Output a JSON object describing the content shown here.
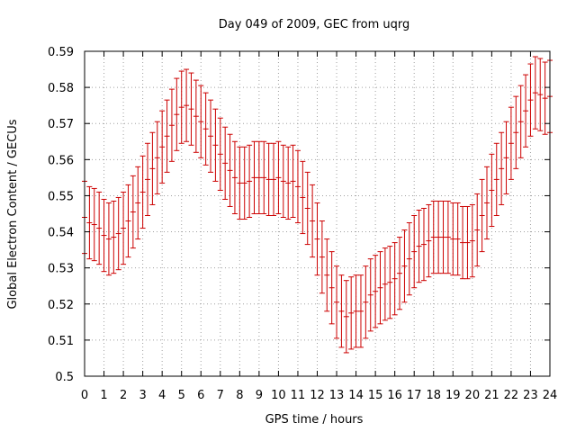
{
  "chart_data": {
    "type": "line",
    "title": "Day 049 of 2009, GEC from uqrg",
    "xlabel": "GPS time / hours",
    "ylabel": "Global Electron Content / GECUs",
    "xlim": [
      0,
      24
    ],
    "ylim": [
      0.5,
      0.59
    ],
    "x_ticks": [
      "0",
      "1",
      "2",
      "3",
      "4",
      "5",
      "6",
      "7",
      "8",
      "9",
      "10",
      "11",
      "12",
      "13",
      "14",
      "15",
      "16",
      "17",
      "18",
      "19",
      "20",
      "21",
      "22",
      "23",
      "24"
    ],
    "y_ticks": [
      "0.5",
      "0.51",
      "0.52",
      "0.53",
      "0.54",
      "0.55",
      "0.56",
      "0.57",
      "0.58",
      "0.59"
    ],
    "x_tick_values": [
      0,
      1,
      2,
      3,
      4,
      5,
      6,
      7,
      8,
      9,
      10,
      11,
      12,
      13,
      14,
      15,
      16,
      17,
      18,
      19,
      20,
      21,
      22,
      23,
      24
    ],
    "y_tick_values": [
      0.5,
      0.51,
      0.52,
      0.53,
      0.54,
      0.55,
      0.56,
      0.57,
      0.58,
      0.59
    ],
    "grid": true,
    "legend": "none",
    "series_color": "#cc0000",
    "error_bar_halfwidth": 0.01,
    "x": [
      0,
      0.25,
      0.5,
      0.75,
      1,
      1.25,
      1.5,
      1.75,
      2,
      2.25,
      2.5,
      2.75,
      3,
      3.25,
      3.5,
      3.75,
      4,
      4.25,
      4.5,
      4.75,
      5,
      5.25,
      5.5,
      5.75,
      6,
      6.25,
      6.5,
      6.75,
      7,
      7.25,
      7.5,
      7.75,
      8,
      8.25,
      8.5,
      8.75,
      9,
      9.25,
      9.5,
      9.75,
      10,
      10.25,
      10.5,
      10.75,
      11,
      11.25,
      11.5,
      11.75,
      12,
      12.25,
      12.5,
      12.75,
      13,
      13.25,
      13.5,
      13.75,
      14,
      14.25,
      14.5,
      14.75,
      15,
      15.25,
      15.5,
      15.75,
      16,
      16.25,
      16.5,
      16.75,
      17,
      17.25,
      17.5,
      17.75,
      18,
      18.25,
      18.5,
      18.75,
      19,
      19.25,
      19.5,
      19.75,
      20,
      20.25,
      20.5,
      20.75,
      21,
      21.25,
      21.5,
      21.75,
      22,
      22.25,
      22.5,
      22.75,
      23,
      23.25,
      23.5,
      23.75,
      24
    ],
    "y": [
      0.544,
      0.5425,
      0.542,
      0.541,
      0.539,
      0.538,
      0.5385,
      0.5395,
      0.541,
      0.543,
      0.5455,
      0.548,
      0.551,
      0.5545,
      0.5575,
      0.5605,
      0.5635,
      0.5665,
      0.5695,
      0.5725,
      0.5745,
      0.575,
      0.574,
      0.572,
      0.5705,
      0.5685,
      0.5665,
      0.564,
      0.5615,
      0.559,
      0.557,
      0.555,
      0.5535,
      0.5535,
      0.554,
      0.555,
      0.555,
      0.555,
      0.5545,
      0.5545,
      0.555,
      0.554,
      0.5535,
      0.554,
      0.5525,
      0.5495,
      0.5465,
      0.543,
      0.538,
      0.533,
      0.528,
      0.5245,
      0.5205,
      0.518,
      0.5165,
      0.5175,
      0.518,
      0.518,
      0.5205,
      0.5225,
      0.5235,
      0.5245,
      0.5255,
      0.526,
      0.527,
      0.5285,
      0.5305,
      0.5325,
      0.5345,
      0.536,
      0.5365,
      0.5375,
      0.5385,
      0.5385,
      0.5385,
      0.5385,
      0.538,
      0.538,
      0.537,
      0.537,
      0.5375,
      0.5405,
      0.5445,
      0.548,
      0.5515,
      0.5545,
      0.5575,
      0.5605,
      0.5645,
      0.5675,
      0.5705,
      0.5735,
      0.5765,
      0.5785,
      0.578,
      0.577,
      0.5775
    ]
  }
}
